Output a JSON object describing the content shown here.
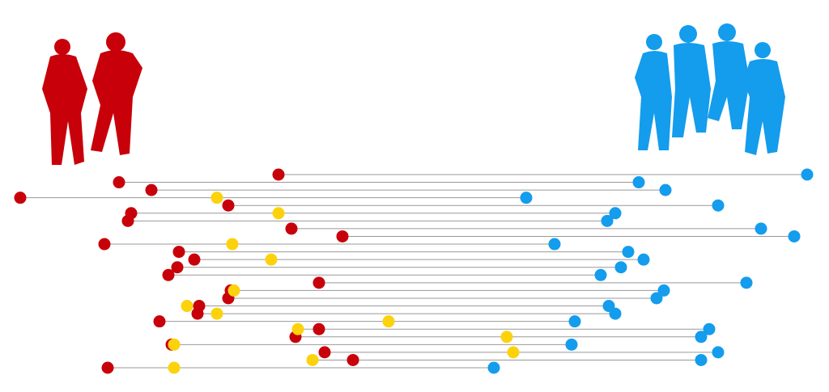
{
  "chart_data": {
    "type": "dumbbell",
    "xlim": [
      0,
      1024
    ],
    "series": [
      {
        "color": "#c8000a",
        "values": [
          344,
          147,
          187,
          25,
          282,
          162,
          158,
          360,
          423,
          129,
          221,
          240,
          219,
          208,
          394,
          285,
          282,
          246,
          244,
          197,
          394,
          365,
          212,
          401,
          436,
          133
        ]
      },
      {
        "color": "#fcd20d",
        "values": [
          null,
          null,
          null,
          268,
          null,
          344,
          null,
          null,
          null,
          287,
          null,
          335,
          null,
          null,
          null,
          289,
          null,
          231,
          268,
          480,
          368,
          626,
          215,
          634,
          386,
          215
        ]
      },
      {
        "color": "#149ced",
        "values": [
          997,
          789,
          822,
          650,
          887,
          760,
          750,
          940,
          981,
          685,
          776,
          795,
          767,
          742,
          922,
          820,
          811,
          752,
          760,
          710,
          876,
          866,
          706,
          887,
          866,
          610
        ]
      }
    ]
  }
}
